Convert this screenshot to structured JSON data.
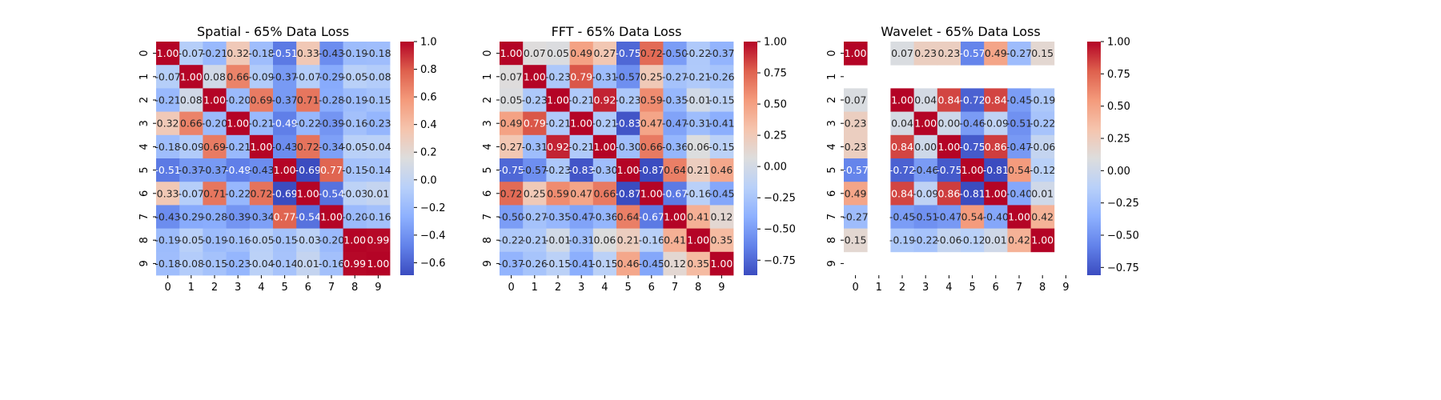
{
  "chart_data": [
    {
      "type": "heatmap",
      "title": "Spatial - 65% Data Loss",
      "xlabel": "",
      "ylabel": "",
      "x_ticks": [
        "0",
        "1",
        "2",
        "3",
        "4",
        "5",
        "6",
        "7",
        "8",
        "9"
      ],
      "y_ticks": [
        "0",
        "1",
        "2",
        "3",
        "4",
        "5",
        "6",
        "7",
        "8",
        "9"
      ],
      "colormap": "coolwarm",
      "vmin": -0.69,
      "vmax": 1.0,
      "colorbar_ticks": [
        "1.0",
        "0.8",
        "0.6",
        "0.4",
        "0.2",
        "0.0",
        "−0.2",
        "−0.4",
        "−0.6"
      ],
      "colorbar_tick_values": [
        1.0,
        0.8,
        0.6,
        0.4,
        0.2,
        0.0,
        -0.2,
        -0.4,
        -0.6
      ],
      "values": [
        [
          1.0,
          -0.07,
          -0.21,
          0.32,
          -0.18,
          -0.51,
          0.33,
          -0.43,
          -0.19,
          -0.18
        ],
        [
          -0.07,
          1.0,
          0.08,
          0.66,
          -0.09,
          -0.37,
          -0.07,
          -0.29,
          -0.05,
          -0.08
        ],
        [
          -0.21,
          0.08,
          1.0,
          -0.2,
          0.69,
          -0.37,
          0.71,
          -0.28,
          -0.19,
          -0.15
        ],
        [
          0.32,
          0.66,
          -0.2,
          1.0,
          -0.21,
          -0.49,
          -0.22,
          -0.39,
          -0.16,
          -0.23
        ],
        [
          -0.18,
          -0.09,
          0.69,
          -0.21,
          1.0,
          -0.43,
          0.72,
          -0.34,
          -0.05,
          -0.04
        ],
        [
          -0.51,
          -0.37,
          -0.37,
          -0.49,
          -0.43,
          1.0,
          -0.69,
          0.77,
          -0.15,
          -0.14
        ],
        [
          0.33,
          -0.07,
          0.71,
          -0.22,
          0.72,
          -0.69,
          1.0,
          -0.54,
          -0.03,
          0.01
        ],
        [
          -0.43,
          -0.29,
          -0.28,
          -0.39,
          -0.34,
          0.77,
          -0.54,
          1.0,
          -0.2,
          -0.16
        ],
        [
          -0.19,
          -0.05,
          -0.19,
          -0.16,
          -0.05,
          -0.15,
          -0.03,
          -0.2,
          1.0,
          0.99
        ],
        [
          -0.18,
          -0.08,
          -0.15,
          -0.23,
          -0.04,
          -0.14,
          0.01,
          -0.16,
          0.99,
          1.0
        ]
      ]
    },
    {
      "type": "heatmap",
      "title": "FFT - 65% Data Loss",
      "xlabel": "",
      "ylabel": "",
      "x_ticks": [
        "0",
        "1",
        "2",
        "3",
        "4",
        "5",
        "6",
        "7",
        "8",
        "9"
      ],
      "y_ticks": [
        "0",
        "1",
        "2",
        "3",
        "4",
        "5",
        "6",
        "7",
        "8",
        "9"
      ],
      "colormap": "coolwarm",
      "vmin": -0.87,
      "vmax": 1.0,
      "colorbar_ticks": [
        "1.00",
        "0.75",
        "0.50",
        "0.25",
        "0.00",
        "−0.25",
        "−0.50",
        "−0.75"
      ],
      "colorbar_tick_values": [
        1.0,
        0.75,
        0.5,
        0.25,
        0.0,
        -0.25,
        -0.5,
        -0.75
      ],
      "values": [
        [
          1.0,
          0.07,
          0.05,
          0.49,
          0.27,
          -0.75,
          0.72,
          -0.5,
          -0.22,
          -0.37
        ],
        [
          0.07,
          1.0,
          -0.23,
          0.79,
          -0.31,
          -0.57,
          0.25,
          -0.27,
          -0.21,
          -0.26
        ],
        [
          0.05,
          -0.23,
          1.0,
          -0.21,
          0.92,
          -0.23,
          0.59,
          -0.35,
          -0.01,
          -0.15
        ],
        [
          0.49,
          0.79,
          -0.21,
          1.0,
          -0.21,
          -0.83,
          0.47,
          -0.47,
          -0.31,
          -0.41
        ],
        [
          0.27,
          -0.31,
          0.92,
          -0.21,
          1.0,
          -0.3,
          0.66,
          -0.36,
          0.06,
          -0.15
        ],
        [
          -0.75,
          -0.57,
          -0.23,
          -0.83,
          -0.3,
          1.0,
          -0.87,
          0.64,
          0.21,
          0.46
        ],
        [
          0.72,
          0.25,
          0.59,
          0.47,
          0.66,
          -0.87,
          1.0,
          -0.67,
          -0.16,
          -0.45
        ],
        [
          -0.5,
          -0.27,
          -0.35,
          -0.47,
          -0.36,
          0.64,
          -0.67,
          1.0,
          0.41,
          0.12
        ],
        [
          -0.22,
          -0.21,
          -0.01,
          -0.31,
          0.06,
          0.21,
          -0.16,
          0.41,
          1.0,
          0.35
        ],
        [
          -0.37,
          -0.26,
          -0.15,
          -0.41,
          -0.15,
          0.46,
          -0.45,
          0.12,
          0.35,
          1.0
        ]
      ]
    },
    {
      "type": "heatmap",
      "title": "Wavelet - 65% Data Loss",
      "xlabel": "",
      "ylabel": "",
      "x_ticks": [
        "0",
        "1",
        "2",
        "3",
        "4",
        "5",
        "6",
        "7",
        "8",
        "9"
      ],
      "y_ticks": [
        "0",
        "1",
        "2",
        "3",
        "4",
        "5",
        "6",
        "7",
        "8",
        "9"
      ],
      "colormap": "coolwarm",
      "vmin": -0.81,
      "vmax": 1.0,
      "colorbar_ticks": [
        "1.00",
        "0.75",
        "0.50",
        "0.25",
        "0.00",
        "−0.25",
        "−0.50",
        "−0.75"
      ],
      "colorbar_tick_values": [
        1.0,
        0.75,
        0.5,
        0.25,
        0.0,
        -0.25,
        -0.5,
        -0.75
      ],
      "values": [
        [
          1.0,
          null,
          0.07,
          0.23,
          0.23,
          -0.57,
          0.49,
          -0.27,
          0.15,
          null
        ],
        [
          null,
          null,
          null,
          null,
          null,
          null,
          null,
          null,
          null,
          null
        ],
        [
          0.07,
          null,
          1.0,
          0.04,
          0.84,
          -0.72,
          0.84,
          -0.45,
          -0.19,
          null
        ],
        [
          0.23,
          null,
          0.04,
          1.0,
          0.0,
          -0.46,
          -0.09,
          -0.51,
          -0.22,
          null
        ],
        [
          0.23,
          null,
          0.84,
          0.0,
          1.0,
          -0.75,
          0.86,
          -0.47,
          -0.06,
          null
        ],
        [
          -0.57,
          null,
          -0.72,
          -0.46,
          -0.75,
          1.0,
          -0.81,
          0.54,
          -0.12,
          null
        ],
        [
          0.49,
          null,
          0.84,
          -0.09,
          0.86,
          -0.81,
          1.0,
          -0.4,
          0.01,
          null
        ],
        [
          -0.27,
          null,
          -0.45,
          -0.51,
          -0.47,
          0.54,
          -0.4,
          1.0,
          0.42,
          null
        ],
        [
          0.15,
          null,
          -0.19,
          -0.22,
          -0.06,
          -0.12,
          0.01,
          0.42,
          1.0,
          null
        ],
        [
          null,
          null,
          null,
          null,
          null,
          null,
          null,
          null,
          null,
          null
        ]
      ]
    }
  ]
}
